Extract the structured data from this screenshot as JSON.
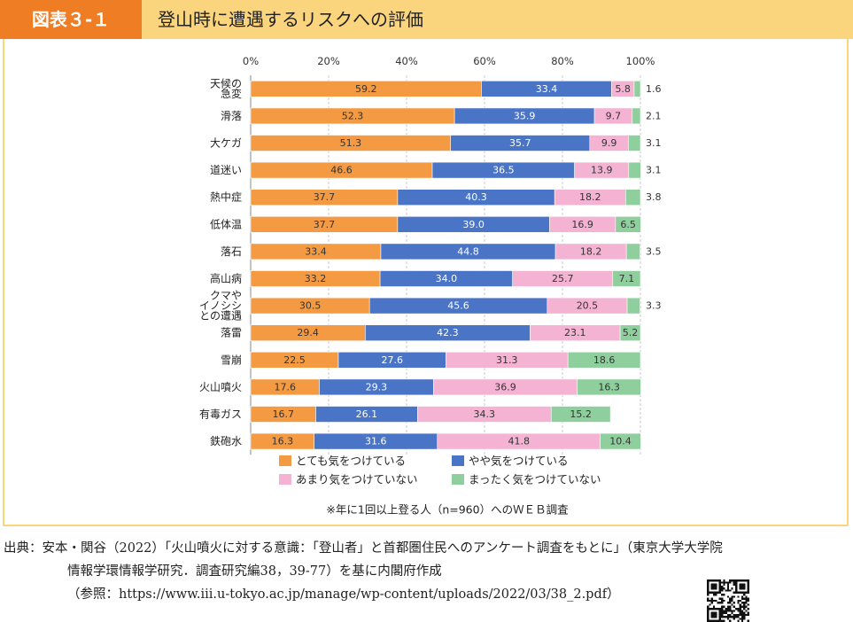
{
  "header": {
    "figure_label": "図表３-１",
    "title": "登山時に遭遇するリスクへの評価"
  },
  "chart_data": {
    "type": "bar",
    "orientation": "horizontal",
    "stacked": true,
    "percent_scale": true,
    "categories": [
      [
        "天候の",
        "急変"
      ],
      [
        "滑落"
      ],
      [
        "大ケガ"
      ],
      [
        "道迷い"
      ],
      [
        "熱中症"
      ],
      [
        "低体温"
      ],
      [
        "落石"
      ],
      [
        "高山病"
      ],
      [
        "クマや",
        "イノシシ",
        "との遭遇"
      ],
      [
        "落雷"
      ],
      [
        "雪崩"
      ],
      [
        "火山噴火"
      ],
      [
        "有毒ガス"
      ],
      [
        "鉄砲水"
      ]
    ],
    "series": [
      {
        "name": "とても気をつけている",
        "color": "#f39a43",
        "values": [
          59.2,
          52.3,
          51.3,
          46.6,
          37.7,
          37.7,
          33.4,
          33.2,
          30.5,
          29.4,
          22.5,
          17.6,
          16.7,
          16.3
        ]
      },
      {
        "name": "やや気をつけている",
        "color": "#4a74c6",
        "values": [
          33.4,
          35.9,
          35.7,
          36.5,
          40.3,
          39.0,
          44.8,
          34.0,
          45.6,
          42.3,
          27.6,
          29.3,
          26.1,
          31.6
        ]
      },
      {
        "name": "あまり気をつけていない",
        "color": "#f4b3d2",
        "values": [
          5.8,
          9.7,
          9.9,
          13.9,
          18.2,
          16.9,
          18.2,
          25.7,
          20.5,
          23.1,
          31.3,
          36.9,
          34.3,
          41.8
        ]
      },
      {
        "name": "まったく気をつけていない",
        "color": "#8fcf9d",
        "values": [
          1.6,
          2.1,
          3.1,
          3.1,
          3.8,
          6.5,
          3.5,
          7.1,
          3.3,
          5.2,
          18.6,
          16.3,
          15.2,
          10.4
        ]
      }
    ],
    "value_labels": [
      [
        "59.2",
        "33.4",
        "5.8",
        "1.6"
      ],
      [
        "52.3",
        "35.9",
        "9.7",
        "2.1"
      ],
      [
        "51.3",
        "35.7",
        "9.9",
        "3.1"
      ],
      [
        "46.6",
        "36.5",
        "13.9",
        "3.1"
      ],
      [
        "37.7",
        "40.3",
        "18.2",
        "3.8"
      ],
      [
        "37.7",
        "39.0",
        "16.9",
        "6.5"
      ],
      [
        "33.4",
        "44.8",
        "18.2",
        "3.5"
      ],
      [
        "33.2",
        "34.0",
        "25.7",
        "7.1"
      ],
      [
        "30.5",
        "45.6",
        "20.5",
        "3.3"
      ],
      [
        "29.4",
        "42.3",
        "23.1",
        "5.2"
      ],
      [
        "22.5",
        "27.6",
        "31.3",
        "18.6"
      ],
      [
        "17.6",
        "29.3",
        "36.9",
        "16.3"
      ],
      [
        "16.7",
        "26.1",
        "34.3",
        "15.2"
      ],
      [
        "16.3",
        "31.6",
        "41.8",
        "10.4"
      ]
    ],
    "outside_label_threshold": 5,
    "xlim": [
      0,
      100
    ],
    "x_ticks": [
      0,
      20,
      40,
      60,
      80,
      100
    ],
    "x_tick_labels": [
      "0%",
      "20%",
      "40%",
      "60%",
      "80%",
      "100%"
    ],
    "grid": true,
    "legend_position": "bottom",
    "note": "※年に1回以上登る人（n=960）へのＷＥＢ調査"
  },
  "source": {
    "lines": [
      "出典：安本・関谷（2022）「火山噴火に対する意識：「登山者」と首都圏住民へのアンケート調査をもとに」（東京大学大学院",
      "情報学環情報学研究．調査研究編38，39-77）を基に内閣府作成",
      "（参照：https://www.iii.u-tokyo.ac.jp/manage/wp-content/uploads/2022/03/38_2.pdf）"
    ]
  }
}
